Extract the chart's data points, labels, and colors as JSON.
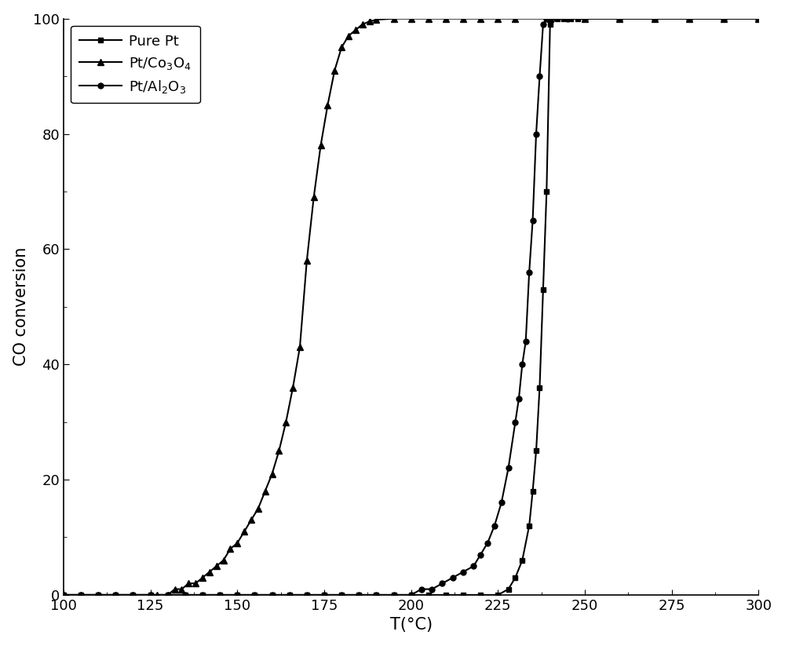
{
  "title": "",
  "xlabel": "T(°C)",
  "ylabel": "CO conversion",
  "xlim": [
    100,
    300
  ],
  "ylim": [
    0,
    100
  ],
  "xticks": [
    100,
    125,
    150,
    175,
    200,
    225,
    250,
    275,
    300
  ],
  "yticks": [
    0,
    20,
    40,
    60,
    80,
    100
  ],
  "background_color": "#ffffff",
  "line_color": "#000000",
  "series": [
    {
      "label": "Pure Pt",
      "marker": "s",
      "x": [
        100,
        105,
        110,
        115,
        120,
        125,
        130,
        135,
        140,
        145,
        150,
        155,
        160,
        165,
        170,
        175,
        180,
        185,
        190,
        195,
        200,
        205,
        210,
        215,
        220,
        225,
        228,
        230,
        232,
        234,
        235,
        236,
        237,
        238,
        239,
        240,
        242,
        244,
        246,
        248,
        250,
        260,
        270,
        280,
        290,
        300
      ],
      "y": [
        0,
        0,
        0,
        0,
        0,
        0,
        0,
        0,
        0,
        0,
        0,
        0,
        0,
        0,
        0,
        0,
        0,
        0,
        0,
        0,
        0,
        0,
        0,
        0,
        0,
        0,
        1,
        3,
        6,
        12,
        18,
        25,
        36,
        53,
        70,
        99,
        100,
        100,
        100,
        100,
        100,
        100,
        100,
        100,
        100,
        100
      ]
    },
    {
      "label": "Pt/Co$_3$O$_4$",
      "marker": "^",
      "x": [
        100,
        105,
        110,
        115,
        120,
        125,
        127,
        130,
        132,
        134,
        136,
        138,
        140,
        142,
        144,
        146,
        148,
        150,
        152,
        154,
        156,
        158,
        160,
        162,
        164,
        166,
        168,
        170,
        172,
        174,
        176,
        178,
        180,
        182,
        184,
        186,
        188,
        190,
        195,
        200,
        205,
        210,
        215,
        220,
        225,
        230,
        240,
        250,
        260,
        270,
        280,
        290,
        300
      ],
      "y": [
        0,
        0,
        0,
        0,
        0,
        0,
        0,
        0,
        1,
        1,
        2,
        2,
        3,
        4,
        5,
        6,
        8,
        9,
        11,
        13,
        15,
        18,
        21,
        25,
        30,
        36,
        43,
        58,
        69,
        78,
        85,
        91,
        95,
        97,
        98,
        99,
        99.5,
        99.8,
        100,
        100,
        100,
        100,
        100,
        100,
        100,
        100,
        100,
        100,
        100,
        100,
        100,
        100,
        100
      ]
    },
    {
      "label": "Pt/Al$_2$O$_3$",
      "marker": "o",
      "x": [
        100,
        105,
        110,
        115,
        120,
        125,
        130,
        135,
        140,
        145,
        150,
        155,
        160,
        165,
        170,
        175,
        180,
        185,
        190,
        195,
        200,
        203,
        206,
        209,
        212,
        215,
        218,
        220,
        222,
        224,
        226,
        228,
        230,
        231,
        232,
        233,
        234,
        235,
        236,
        237,
        238,
        239,
        240,
        245,
        250,
        260,
        270,
        280,
        290,
        300
      ],
      "y": [
        0,
        0,
        0,
        0,
        0,
        0,
        0,
        0,
        0,
        0,
        0,
        0,
        0,
        0,
        0,
        0,
        0,
        0,
        0,
        0,
        0,
        1,
        1,
        2,
        3,
        4,
        5,
        7,
        9,
        12,
        16,
        22,
        30,
        34,
        40,
        44,
        56,
        65,
        80,
        90,
        99,
        100,
        100,
        100,
        100,
        100,
        100,
        100,
        100,
        100
      ]
    }
  ]
}
